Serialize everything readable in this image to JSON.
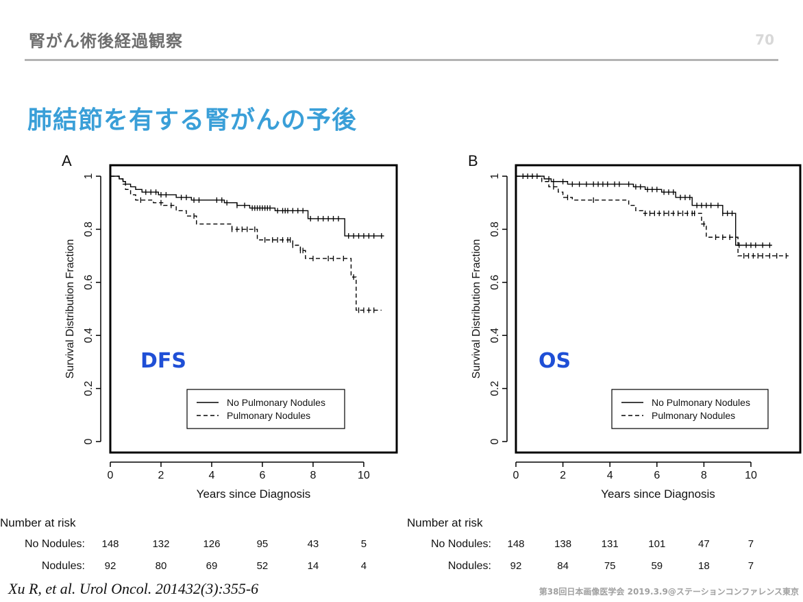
{
  "header": {
    "title": "腎がん術後経過観察",
    "page_number": "70"
  },
  "main_title": "肺結節を有する腎がんの予後",
  "colors": {
    "accent_title": "#3a9fd8",
    "panel_label": "#1f4fd6",
    "ink": "#111111"
  },
  "chart_data": [
    {
      "type": "line",
      "panel_label": "A",
      "annotation": "DFS",
      "xlabel": "Years since Diagnosis",
      "ylabel": "Survival Distribution Fraction",
      "xlim": [
        0,
        11.3
      ],
      "ylim": [
        0,
        1
      ],
      "xticks": [
        "0",
        "2",
        "4",
        "6",
        "8",
        "10"
      ],
      "yticks": [
        "0",
        "0.2",
        "0.4",
        "0.6",
        "0.8",
        "1"
      ],
      "legend": {
        "position": "bottom-right",
        "entries": [
          "No Pulmonary Nodules",
          "Pulmonary Nodules"
        ]
      },
      "series": [
        {
          "name": "No Pulmonary Nodules",
          "style": "solid",
          "x": [
            0,
            0.35,
            0.5,
            0.6,
            0.8,
            1.0,
            1.25,
            1.9,
            2.6,
            3.2,
            4.5,
            5.0,
            5.5,
            6.5,
            7.8,
            9.25,
            10.8
          ],
          "y": [
            1,
            0.99,
            0.98,
            0.97,
            0.96,
            0.95,
            0.94,
            0.93,
            0.92,
            0.91,
            0.9,
            0.89,
            0.88,
            0.87,
            0.84,
            0.775,
            0.775
          ],
          "censors": [
            1.4,
            1.6,
            1.8,
            2.0,
            2.2,
            2.8,
            3.0,
            3.3,
            3.5,
            4.2,
            4.4,
            4.6,
            5.0,
            5.3,
            5.6,
            5.7,
            5.8,
            5.9,
            6.0,
            6.1,
            6.2,
            6.3,
            6.6,
            6.8,
            6.9,
            7.0,
            7.2,
            7.4,
            7.6,
            7.9,
            8.2,
            8.4,
            8.6,
            8.8,
            9.0,
            9.4,
            9.6,
            9.8,
            10.0,
            10.2,
            10.4,
            10.7
          ]
        },
        {
          "name": "Pulmonary Nodules",
          "style": "dashed",
          "x": [
            0,
            0.35,
            0.5,
            0.6,
            0.8,
            1.0,
            1.7,
            2.1,
            2.6,
            3.0,
            3.4,
            4.8,
            5.8,
            7.2,
            7.5,
            7.7,
            9.5,
            9.7,
            10.7
          ],
          "y": [
            1,
            0.99,
            0.97,
            0.95,
            0.93,
            0.91,
            0.9,
            0.89,
            0.87,
            0.85,
            0.82,
            0.8,
            0.76,
            0.74,
            0.72,
            0.69,
            0.62,
            0.495,
            0.495
          ],
          "censors": [
            1.2,
            2.0,
            2.4,
            3.3,
            4.8,
            5.0,
            5.2,
            5.4,
            5.7,
            6.1,
            6.4,
            6.6,
            6.8,
            7.0,
            7.1,
            7.2,
            7.5,
            7.6,
            8.0,
            8.6,
            8.8,
            9.2,
            9.6,
            9.8,
            10.0,
            10.2,
            10.4
          ]
        }
      ],
      "risk_table": {
        "heading": "Number at risk",
        "rows": [
          {
            "label": "No Nodules:",
            "values": [
              "148",
              "132",
              "126",
              "95",
              "43",
              "5"
            ]
          },
          {
            "label": "Nodules:",
            "values": [
              "92",
              "80",
              "69",
              "52",
              "14",
              "4"
            ]
          }
        ]
      }
    },
    {
      "type": "line",
      "panel_label": "B",
      "annotation": "OS",
      "xlabel": "Years since Diagnosis",
      "ylabel": "Survival Distribution Fraction",
      "xlim": [
        0,
        12.1
      ],
      "ylim": [
        0,
        1
      ],
      "xticks": [
        "0",
        "2",
        "4",
        "6",
        "8",
        "10"
      ],
      "yticks": [
        "0",
        "0.2",
        "0.4",
        "0.6",
        "0.8",
        "1"
      ],
      "legend": {
        "position": "bottom-right",
        "entries": [
          "No Pulmonary Nodules",
          "Pulmonary Nodules"
        ]
      },
      "series": [
        {
          "name": "No Pulmonary Nodules",
          "style": "solid",
          "x": [
            0,
            1.2,
            1.5,
            2.2,
            4.5,
            5.0,
            5.5,
            6.2,
            6.8,
            7.5,
            8.8,
            9.35,
            9.6,
            10.9
          ],
          "y": [
            1,
            0.99,
            0.98,
            0.97,
            0.97,
            0.96,
            0.95,
            0.94,
            0.92,
            0.89,
            0.86,
            0.74,
            0.74,
            0.74
          ],
          "censors": [
            0.3,
            0.5,
            0.7,
            0.9,
            1.4,
            1.6,
            2.0,
            2.4,
            2.7,
            3.0,
            3.3,
            3.5,
            3.7,
            3.9,
            4.2,
            4.4,
            4.8,
            5.1,
            5.3,
            5.6,
            5.8,
            6.0,
            6.3,
            6.5,
            6.7,
            7.0,
            7.2,
            7.4,
            7.7,
            7.9,
            8.1,
            8.3,
            8.6,
            8.8,
            9.0,
            9.2,
            9.5,
            9.8,
            10.0,
            10.2,
            10.5,
            10.8
          ]
        },
        {
          "name": "Pulmonary Nodules",
          "style": "dashed",
          "x": [
            0,
            1.1,
            1.4,
            1.8,
            2.0,
            2.4,
            2.9,
            4.8,
            5.1,
            5.4,
            7.6,
            7.9,
            8.1,
            9.4,
            9.45,
            11.6
          ],
          "y": [
            1,
            0.98,
            0.96,
            0.94,
            0.92,
            0.91,
            0.91,
            0.89,
            0.87,
            0.86,
            0.86,
            0.82,
            0.77,
            0.77,
            0.7,
            0.7
          ],
          "censors": [
            1.6,
            2.2,
            3.3,
            5.5,
            5.7,
            5.9,
            6.1,
            6.3,
            6.5,
            6.7,
            6.9,
            7.1,
            7.3,
            7.5,
            7.6,
            8.0,
            8.5,
            8.8,
            9.1,
            9.7,
            9.9,
            10.1,
            10.3,
            10.5,
            10.8,
            11.1,
            11.5
          ]
        }
      ],
      "risk_table": {
        "heading": "Number at risk",
        "rows": [
          {
            "label": "No Nodules:",
            "values": [
              "148",
              "138",
              "131",
              "101",
              "47",
              "7"
            ]
          },
          {
            "label": "Nodules:",
            "values": [
              "92",
              "84",
              "75",
              "59",
              "18",
              "7"
            ]
          }
        ]
      }
    }
  ],
  "citation": "Xu R, et al. Urol Oncol. 201432(3):355-6",
  "footer": "第38回日本画像医学会 2019.3.9@ステーションコンファレンス東京"
}
